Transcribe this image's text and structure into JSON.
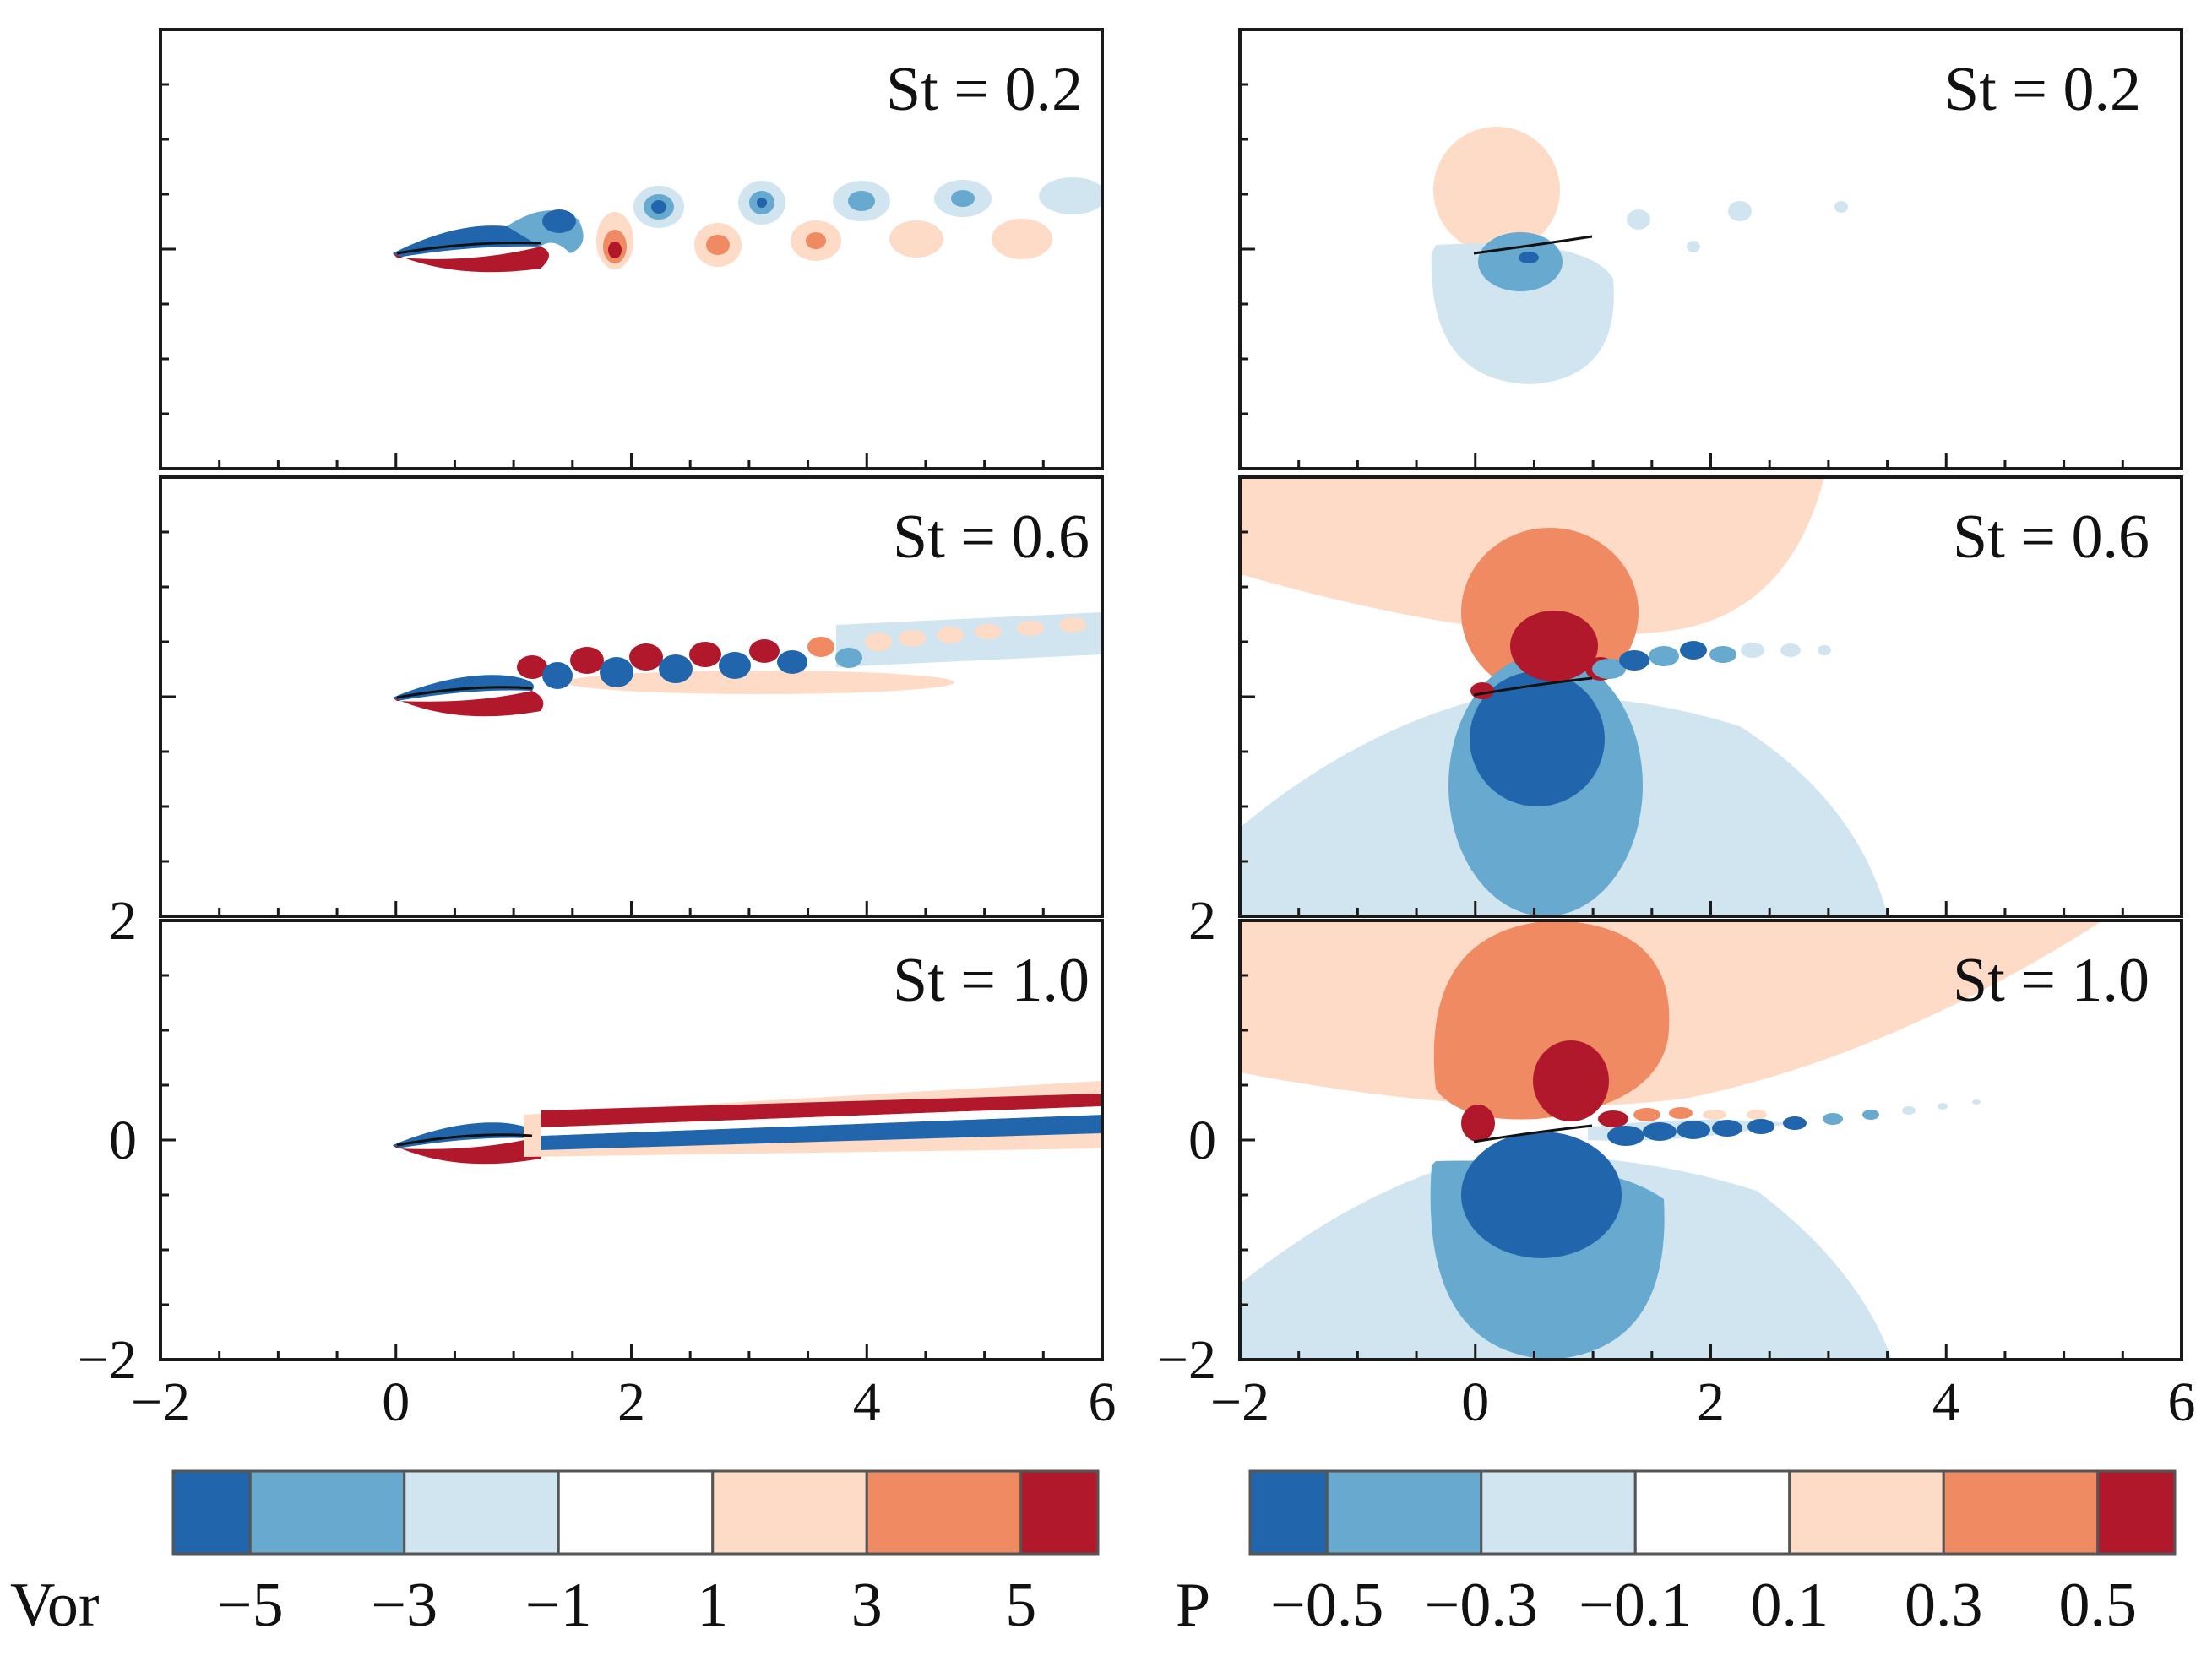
{
  "chart_data": {
    "type": "contour",
    "axes": {
      "xlim": [
        -2,
        6
      ],
      "ylim": [
        -2,
        2
      ],
      "xticks": [
        -2,
        0,
        2,
        4,
        6
      ],
      "yticks": [
        -2,
        0,
        2
      ]
    },
    "tick_labels": {
      "x": [
        "−2",
        "0",
        "2",
        "4",
        "6"
      ],
      "y": [
        "−2",
        "0",
        "2"
      ]
    },
    "panels": [
      {
        "column": "vorticity",
        "st_label": "St = 0.2",
        "st": 0.2
      },
      {
        "column": "vorticity",
        "st_label": "St = 0.6",
        "st": 0.6
      },
      {
        "column": "vorticity",
        "st_label": "St = 1.0",
        "st": 1.0
      },
      {
        "column": "pressure",
        "st_label": "St = 0.2",
        "st": 0.2
      },
      {
        "column": "pressure",
        "st_label": "St = 0.6",
        "st": 0.6
      },
      {
        "column": "pressure",
        "st_label": "St = 1.0",
        "st": 1.0
      }
    ],
    "colorbars": [
      {
        "name": "Vor",
        "levels": [
          -5,
          -3,
          -1,
          1,
          3,
          5
        ],
        "labels": [
          "−5",
          "−3",
          "−1",
          "1",
          "3",
          "5"
        ],
        "colors": [
          "#2166ac",
          "#67a9cf",
          "#d1e5f0",
          "#ffffff",
          "#fddbc7",
          "#ef8a62",
          "#b2182b"
        ]
      },
      {
        "name": "P",
        "levels": [
          -0.5,
          -0.3,
          -0.1,
          0.1,
          0.3,
          0.5
        ],
        "labels": [
          "−0.5",
          "−0.3",
          "−0.1",
          "0.1",
          "0.3",
          "0.5"
        ],
        "colors": [
          "#2166ac",
          "#67a9cf",
          "#d1e5f0",
          "#ffffff",
          "#fddbc7",
          "#ef8a62",
          "#b2182b"
        ]
      }
    ]
  }
}
